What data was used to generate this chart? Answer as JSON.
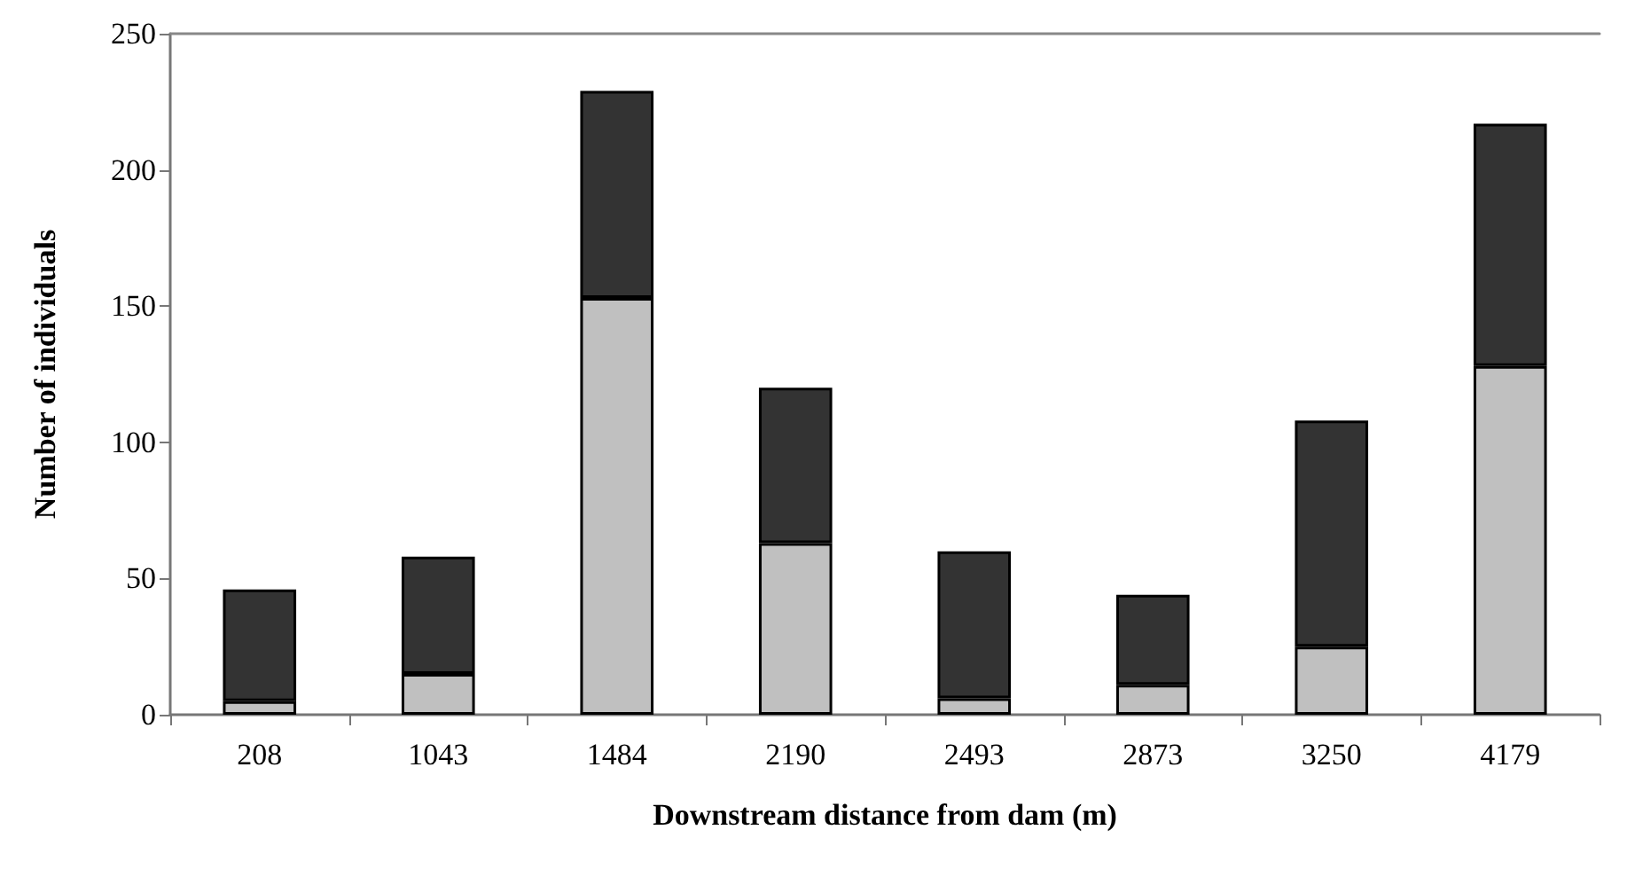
{
  "chart_data": {
    "type": "bar",
    "stacked": true,
    "xlabel": "Downstream distance from dam (m)",
    "ylabel": "Number of individuals",
    "categories": [
      "208",
      "1043",
      "1484",
      "2190",
      "2493",
      "2873",
      "3250",
      "4179"
    ],
    "series": [
      {
        "color": "#c0c0c0",
        "values": [
          5,
          15,
          153,
          63,
          6,
          11,
          25,
          128
        ]
      },
      {
        "color": "#333333",
        "values": [
          41,
          43,
          76,
          57,
          54,
          33,
          83,
          89
        ]
      }
    ],
    "ylim": [
      0,
      250
    ],
    "yticks": [
      0,
      50,
      100,
      150,
      200,
      250
    ],
    "grid": false
  }
}
